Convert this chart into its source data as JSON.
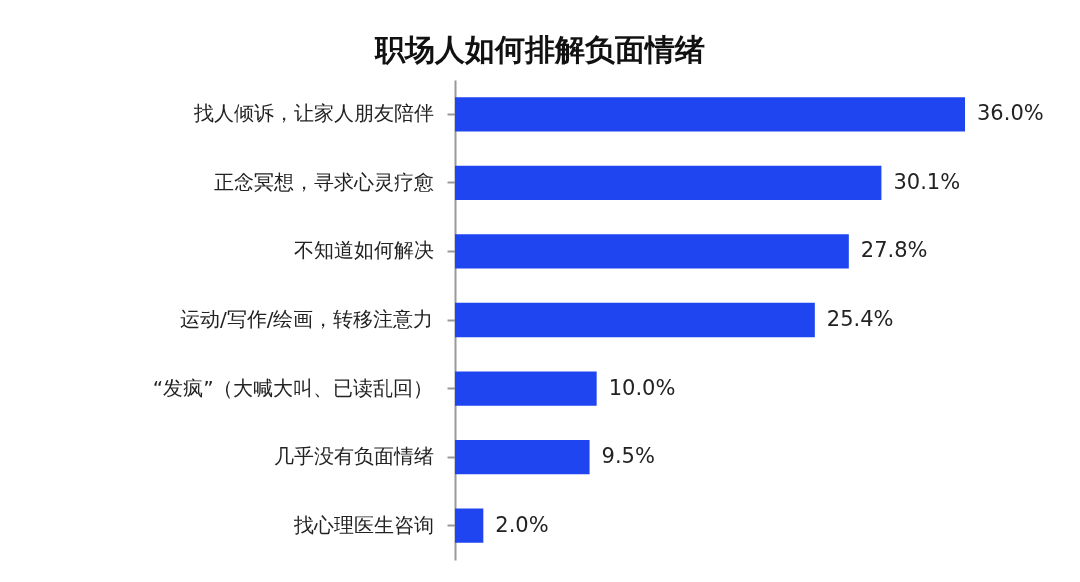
{
  "chart_data": {
    "type": "bar",
    "title": "职场人如何排解负面情绪",
    "orientation": "horizontal",
    "categories": [
      "找人倾诉，让家人朋友陪伴",
      "正念冥想，寻求心灵疗愈",
      "不知道如何解决",
      "运动/写作/绘画，转移注意力",
      "“发疯”（大喊大叫、已读乱回）",
      "几乎没有负面情绪",
      "找心理医生咨询"
    ],
    "values": [
      36.0,
      30.1,
      27.8,
      25.4,
      10.0,
      9.5,
      2.0
    ],
    "value_labels": [
      "36.0%",
      "30.1%",
      "27.8%",
      "25.4%",
      "10.0%",
      "9.5%",
      "2.0%"
    ],
    "color": "#1f45f0",
    "tick_labels": "y"
  }
}
